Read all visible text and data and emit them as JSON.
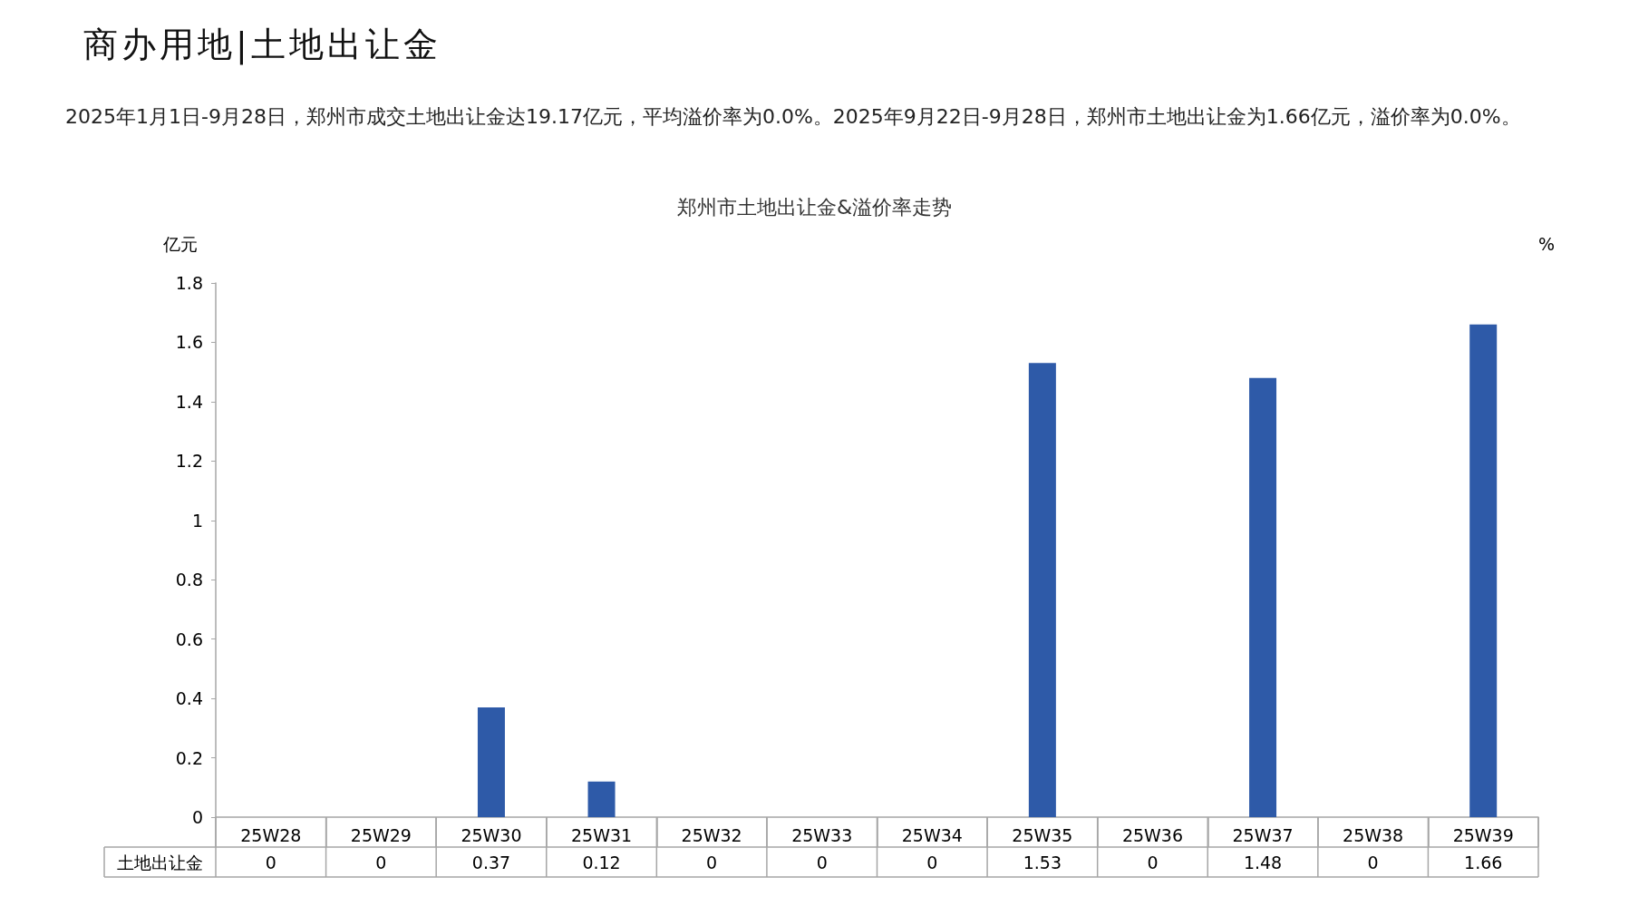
{
  "chart_data": {
    "type": "bar",
    "title": "郑州市土地出让金&溢价率走势",
    "annotations": [
      "商办用地|土地出让金",
      "2025年1月1日-9月28日，郑州市成交土地出让金达19.17亿元，平均溢价率为0.0%。2025年9月22日-9月28日，郑州市土地出让金为1.66亿元，溢价率为0.0%。"
    ],
    "ylabel": "亿元",
    "y2label": "%",
    "categories": [
      "25W28",
      "25W29",
      "25W30",
      "25W31",
      "25W32",
      "25W33",
      "25W34",
      "25W35",
      "25W36",
      "25W37",
      "25W38",
      "25W39"
    ],
    "series": [
      {
        "name": "土地出让金",
        "color": "#2e5aa8",
        "values": [
          0,
          0,
          0.37,
          0.12,
          0,
          0,
          0,
          1.53,
          0,
          1.48,
          0,
          1.66
        ]
      }
    ],
    "ylim": [
      0,
      1.8
    ],
    "yticks": [
      0,
      0.2,
      0.4,
      0.6,
      0.8,
      1,
      1.2,
      1.4,
      1.6,
      1.8
    ],
    "data_labels": true,
    "grid": false,
    "legend": false
  }
}
